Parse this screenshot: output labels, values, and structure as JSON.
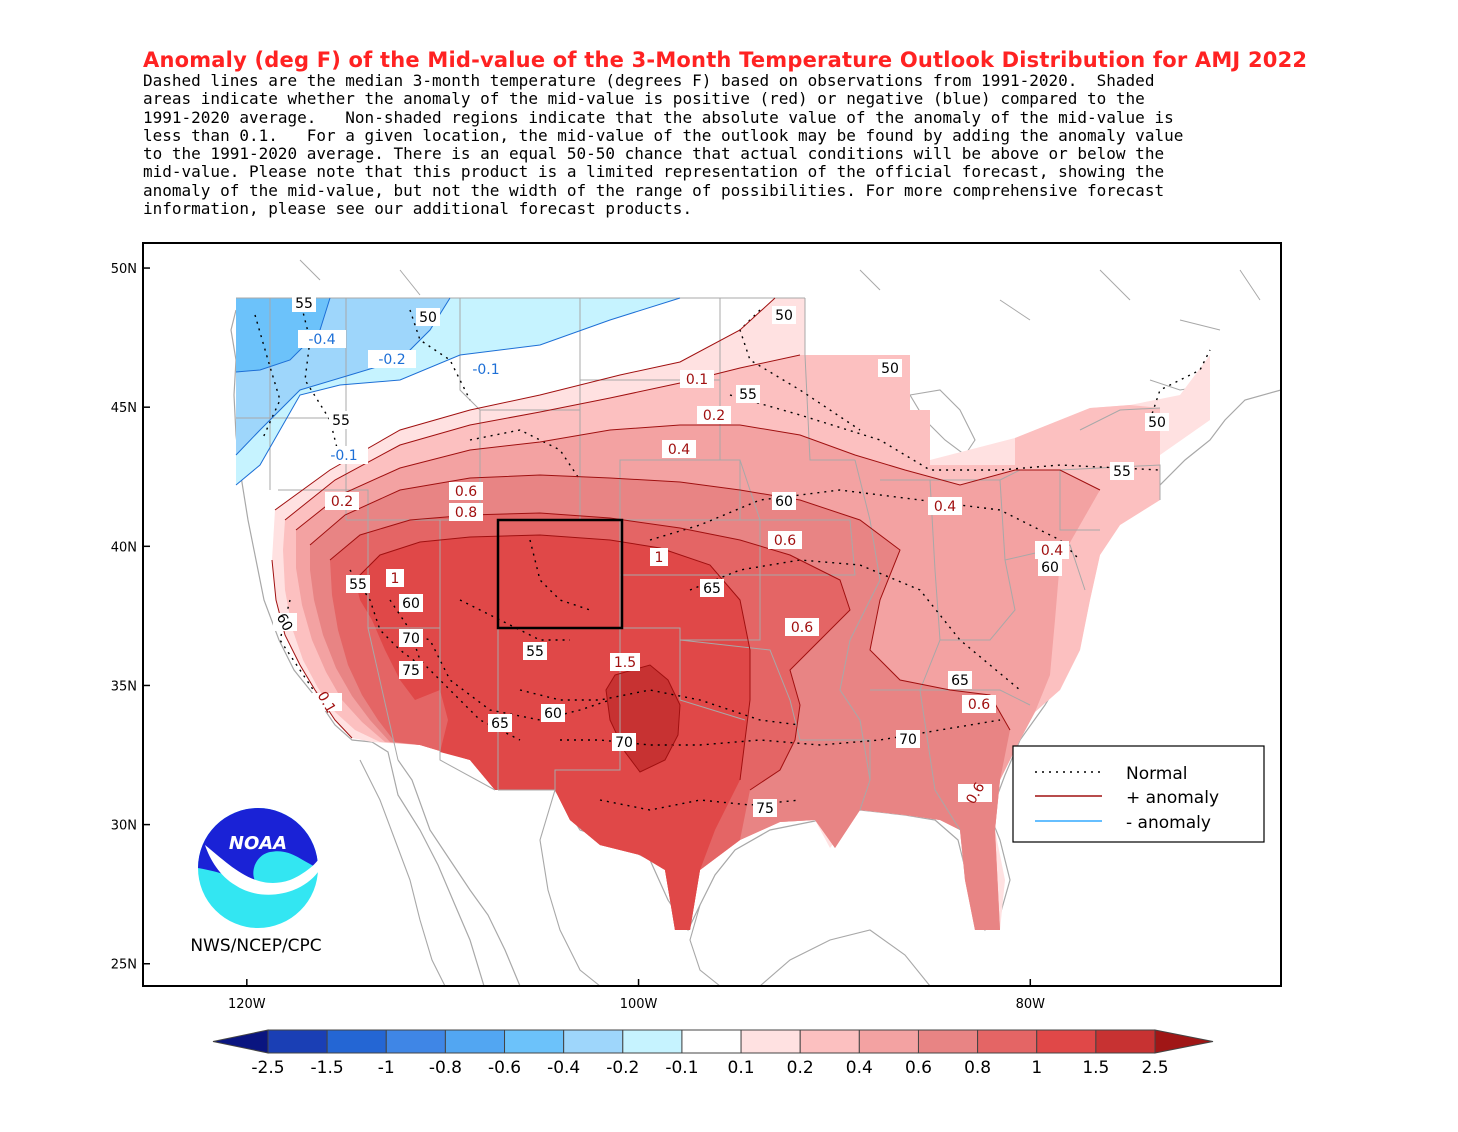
{
  "title": "Anomaly (deg F) of the Mid-value of the 3-Month Temperature Outlook Distribution for AMJ 2022",
  "description_lines": [
    "Dashed lines are the median 3-month temperature (degrees F) based on observations from 1991-2020.  Shaded",
    "areas indicate whether the anomaly of the mid-value is positive (red) or negative (blue) compared to the",
    "1991-2020 average.   Non-shaded regions indicate that the absolute value of the anomaly of the mid-value is",
    "less than 0.1.   For a given location, the mid-value of the outlook may be found by adding the anomaly value",
    "to the 1991-2020 average. There is an equal 50-50 chance that actual conditions will be above or below the",
    "mid-value. Please note that this product is a limited representation of the official forecast, showing the",
    "anomaly of the mid-value, but not the width of the range of possibilities. For more comprehensive forecast",
    "information, please see our additional forecast products."
  ],
  "axes": {
    "lat_labels": [
      "50N",
      "45N",
      "40N",
      "35N",
      "30N",
      "25N"
    ],
    "lat_values": [
      50,
      45,
      40,
      35,
      30,
      25
    ],
    "lon_labels": [
      "120W",
      "100W",
      "80W"
    ],
    "lon_values": [
      -120,
      -100,
      -80
    ],
    "lon_range": [
      -125.3,
      -67.2
    ],
    "lat_range": [
      50.9,
      24.2
    ]
  },
  "legend": {
    "normal": "Normal",
    "pos": "+ anomaly",
    "neg": "- anomaly",
    "colors": {
      "normal": "#000000",
      "pos": "#a01010",
      "neg": "#33aaff"
    }
  },
  "logo": {
    "text": "NOAA",
    "caption": "NWS/NCEP/CPC"
  },
  "colorbar": {
    "labels": [
      "-2.5",
      "-1.5",
      "-1",
      "-0.8",
      "-0.6",
      "-0.4",
      "-0.2",
      "-0.1",
      "0.1",
      "0.2",
      "0.4",
      "0.6",
      "0.8",
      "1",
      "1.5",
      "2.5"
    ],
    "colors": [
      "#1a3fb5",
      "#2466d4",
      "#3f86e6",
      "#52a6f2",
      "#6cc2fa",
      "#9ed6fb",
      "#c6f3ff",
      "#ffffff",
      "#ffe1e1",
      "#fcc0c0",
      "#f3a2a2",
      "#e88484",
      "#e46565",
      "#e04848",
      "#c73232"
    ],
    "end_low": "#0a1580",
    "end_high": "#a01616"
  },
  "anomaly_labels": [
    "-0.4",
    "-0.2",
    "-0.1",
    "-0.1",
    "0.1",
    "0.2",
    "0.4",
    "0.6",
    "0.8",
    "1",
    "1",
    "1.5",
    "0.6",
    "0.6",
    "0.4",
    "0.4",
    "0.6",
    "0.6",
    "0.2",
    "0.1"
  ],
  "normal_labels": [
    "55",
    "50",
    "50",
    "55",
    "50",
    "50",
    "55",
    "55",
    "60",
    "60",
    "55",
    "60",
    "70",
    "75",
    "65",
    "55",
    "60",
    "65",
    "70",
    "75",
    "65",
    "70",
    "60"
  ],
  "colors": {
    "neg1": "#c6f3ff",
    "neg2": "#9ed6fb",
    "neg3": "#6cc2fa",
    "neg4": "#52a6f2",
    "pos1": "#ffe1e1",
    "pos2": "#fcc0c0",
    "pos3": "#f3a2a2",
    "pos4": "#e88484",
    "pos5": "#e46565",
    "pos6": "#e04848",
    "pos7": "#c73232",
    "border": "#a8a8a8",
    "frame": "#000000"
  }
}
